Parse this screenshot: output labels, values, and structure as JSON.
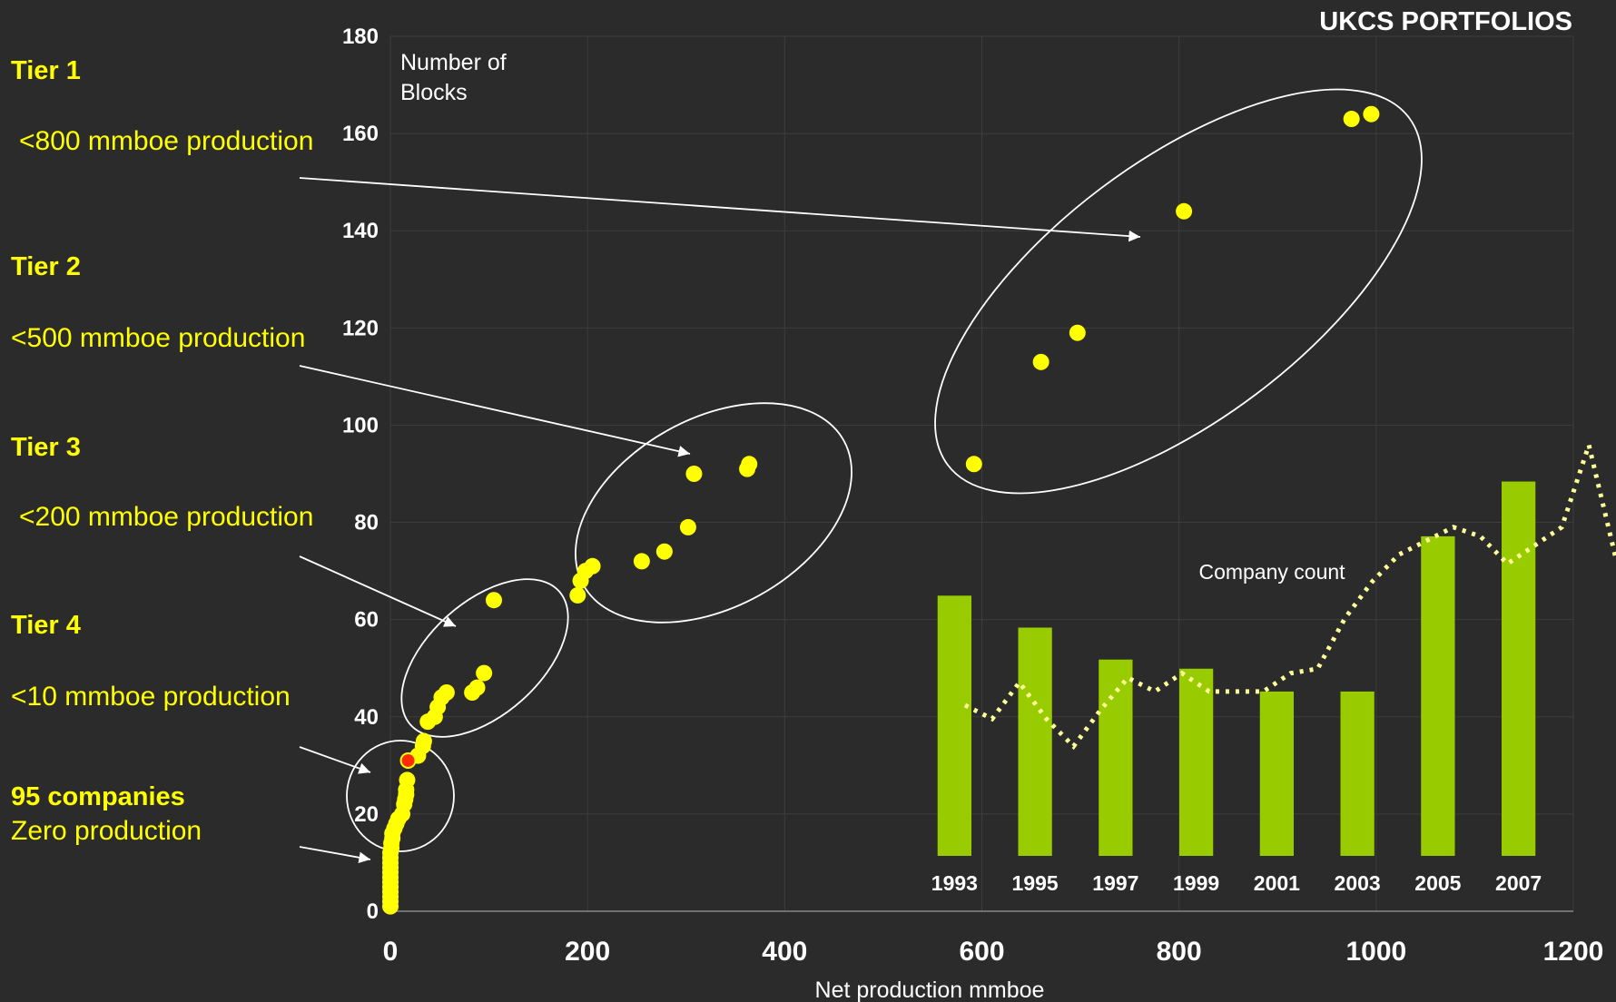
{
  "title": "UKCS PORTFOLIOS",
  "colors": {
    "background": "#2b2b2b",
    "points": "#ffff00",
    "highlight": "#ff2a00",
    "bars": "#99cc00",
    "line": "#ffff99",
    "text": "#ffffff",
    "tier_text": "#ffff00"
  },
  "tiers": [
    {
      "name": "Tier 1",
      "desc": "<800 mmboe production"
    },
    {
      "name": "Tier 2",
      "desc": "<500 mmboe production"
    },
    {
      "name": "Tier 3",
      "desc": "<200 mmboe production"
    },
    {
      "name": "Tier 4",
      "desc": "<10 mmboe production"
    },
    {
      "name": "95 companies",
      "desc": "Zero production"
    }
  ],
  "chart_data": [
    {
      "type": "scatter",
      "title": "UKCS PORTFOLIOS",
      "xlabel": "Net production mmboe",
      "ylabel": "Number of Blocks",
      "xlim": [
        0,
        1200
      ],
      "ylim": [
        0,
        180
      ],
      "xticks": [
        0,
        200,
        400,
        600,
        800,
        1000,
        1200
      ],
      "yticks": [
        0,
        20,
        40,
        60,
        80,
        100,
        120,
        140,
        160,
        180
      ],
      "grid": true,
      "series": [
        {
          "points": [
            [
              0,
              1
            ],
            [
              0,
              2
            ],
            [
              0,
              3
            ],
            [
              0,
              4
            ],
            [
              0,
              5
            ],
            [
              0,
              6
            ],
            [
              0,
              7
            ],
            [
              0,
              8
            ],
            [
              0,
              9
            ],
            [
              0,
              10
            ],
            [
              0,
              11
            ],
            [
              0,
              12
            ],
            [
              1,
              13
            ],
            [
              1,
              14
            ],
            [
              2,
              15
            ],
            [
              2,
              16
            ],
            [
              4,
              17
            ],
            [
              6,
              18
            ],
            [
              8,
              19
            ],
            [
              12,
              20
            ],
            [
              14,
              22
            ],
            [
              15,
              23
            ],
            [
              16,
              24
            ],
            [
              16,
              25
            ],
            [
              17,
              27
            ],
            [
              28,
              32
            ],
            [
              33,
              34
            ],
            [
              34,
              35
            ],
            [
              38,
              39
            ],
            [
              45,
              40
            ],
            [
              48,
              42
            ],
            [
              52,
              44
            ],
            [
              57,
              45
            ],
            [
              83,
              45
            ],
            [
              88,
              46
            ],
            [
              95,
              49
            ],
            [
              105,
              64
            ],
            [
              190,
              65
            ],
            [
              193,
              68
            ],
            [
              198,
              70
            ],
            [
              205,
              71
            ],
            [
              255,
              72
            ],
            [
              278,
              74
            ],
            [
              302,
              79
            ],
            [
              308,
              90
            ],
            [
              362,
              91
            ],
            [
              364,
              92
            ],
            [
              592,
              92
            ],
            [
              660,
              113
            ],
            [
              697,
              119
            ],
            [
              805,
              144
            ],
            [
              975,
              163
            ],
            [
              995,
              164
            ]
          ]
        },
        {
          "name": "",
          "points": [
            [
              18,
              31
            ]
          ]
        }
      ]
    },
    {
      "type": "bar",
      "title": "Company count",
      "categories": [
        "1993",
        "1995",
        "1997",
        "1999",
        "2001",
        "2003",
        "2005",
        "2007"
      ],
      "values": [
        57,
        50,
        43,
        41,
        36,
        36,
        70,
        82
      ],
      "line": [
        33,
        30,
        38,
        30,
        24,
        32,
        39,
        36,
        40,
        36,
        36,
        36,
        40,
        41,
        52,
        60,
        66,
        69,
        72,
        70,
        64,
        68,
        72,
        90,
        65
      ]
    }
  ],
  "annotations": {
    "blocks_label_line1": "Number of",
    "blocks_label_line2": "Blocks"
  }
}
